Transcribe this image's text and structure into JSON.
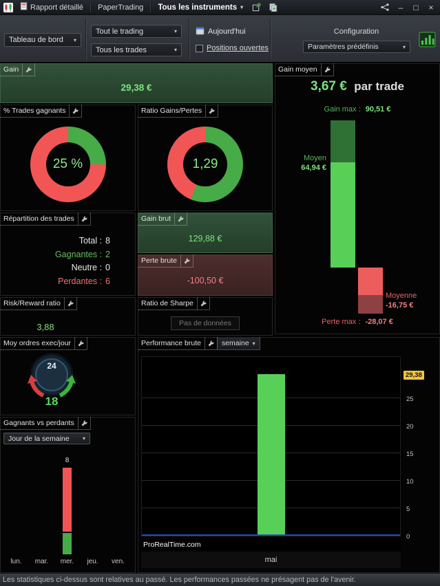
{
  "titlebar": {
    "tab_report": "Rapport détaillé",
    "tab_papertrading": "PaperTrading",
    "instruments_dropdown": "Tous les instruments"
  },
  "toolbar": {
    "dashboard_dropdown": "Tableau de bord",
    "trading_filter_dropdown": "Tout le trading",
    "trades_filter_dropdown": "Tous les trades",
    "today_label": "Aujourd'hui",
    "open_positions_label": "Positions ouvertes",
    "configuration_label": "Configuration",
    "presets_dropdown": "Paramètres prédéfinis"
  },
  "icons": {
    "chevron_down": "▾",
    "minimize": "–",
    "maximize": "□",
    "close": "×"
  },
  "panels": {
    "gain": {
      "title": "Gain",
      "value": "29,38 €"
    },
    "gain_moyen": {
      "title": "Gain moyen",
      "headline_value": "3,67 €",
      "headline_suffix": "par trade",
      "gain_max_label": "Gain max :",
      "gain_max_value": "90,51 €",
      "moyen_label": "Moyen",
      "moyen_value": "64,94 €",
      "moyenne_label": "Moyenne",
      "moyenne_value": "-16,75 €",
      "perte_max_label": "Perte max :",
      "perte_max_value": "-28,07 €"
    },
    "pct_trades_gagnants": {
      "title": "% Trades gagnants",
      "center_value": "25 %"
    },
    "ratio_gains_pertes": {
      "title": "Ratio Gains/Pertes",
      "center_value": "1,29"
    },
    "repartition": {
      "title": "Répartition des trades",
      "rows": [
        {
          "label": "Total :",
          "value": "8",
          "color": "white"
        },
        {
          "label": "Gagnantes :",
          "value": "2",
          "color": "green"
        },
        {
          "label": "Neutre :",
          "value": "0",
          "color": "white"
        },
        {
          "label": "Perdantes :",
          "value": "6",
          "color": "red"
        }
      ]
    },
    "gain_brut": {
      "title": "Gain brut",
      "value": "129,88 €"
    },
    "perte_brute": {
      "title": "Perte brute",
      "value": "-100,50 €"
    },
    "risk_reward": {
      "title": "Risk/Reward ratio",
      "value": "3,88"
    },
    "sharpe": {
      "title": "Ratio de Sharpe",
      "no_data_label": "Pas de données"
    },
    "moy_ordres": {
      "title": "Moy ordres exec/jour",
      "gauge_top": "24",
      "value": "18"
    },
    "performance": {
      "title": "Performance brute",
      "period_dropdown": "semaine",
      "watermark": "ProRealTime.com",
      "x_label": "mai",
      "current_value_tag": "29,38"
    },
    "gagnants_vs_perdants": {
      "title": "Gagnants vs perdants",
      "dropdown": "Jour de la semaine"
    }
  },
  "statusbar": {
    "text": "Les statistiques ci-dessus sont relatives au passé. Les performances passées ne présagent pas de l'avenir."
  },
  "chart_data": [
    {
      "id": "pct_trades_gagnants",
      "type": "pie",
      "title": "% Trades gagnants",
      "labels": [
        "gagnants",
        "perdants"
      ],
      "values": [
        25,
        75
      ],
      "center_text": "25 %",
      "colors": [
        "#47ab47",
        "#f25555"
      ]
    },
    {
      "id": "ratio_gains_pertes",
      "type": "pie",
      "title": "Ratio Gains/Pertes",
      "labels": [
        "gains",
        "pertes"
      ],
      "values": [
        56.3,
        43.7
      ],
      "center_text": "1,29",
      "colors": [
        "#47ab47",
        "#f25555"
      ]
    },
    {
      "id": "gain_moyen",
      "type": "waterfall",
      "title": "Gain moyen",
      "average_per_trade": 3.67,
      "points": {
        "gain_max": 90.51,
        "gain_moyen": 64.94,
        "perte_moyenne": -16.75,
        "perte_max": -28.07
      },
      "colors": {
        "gain_max": "#2f7034",
        "gain_moyen": "#58d058",
        "perte_moyenne": "#ee5d5d",
        "perte_max": "#8f4040"
      }
    },
    {
      "id": "performance",
      "type": "bar",
      "title": "Performance brute",
      "period": "semaine",
      "categories": [
        "mai"
      ],
      "values": [
        29.38
      ],
      "yticks": [
        0,
        5,
        10,
        15,
        20,
        25
      ],
      "ylim": [
        0,
        29.38
      ],
      "bar_color": "#58d058",
      "zero_line_color": "#2945c8",
      "grid": true,
      "legend": false
    },
    {
      "id": "gagnants_vs_perdants",
      "type": "bar",
      "title": "Gagnants vs perdants (Jour de la semaine)",
      "categories": [
        "lun.",
        "mar.",
        "mer.",
        "jeu.",
        "ven."
      ],
      "series": [
        {
          "name": "gagnants",
          "color": "#47ab47",
          "values": [
            0,
            0,
            2,
            0,
            0
          ]
        },
        {
          "name": "perdants",
          "color": "#f25555",
          "values": [
            0,
            0,
            6,
            0,
            0
          ]
        }
      ],
      "totals": [
        0,
        0,
        8,
        0,
        0
      ]
    }
  ]
}
